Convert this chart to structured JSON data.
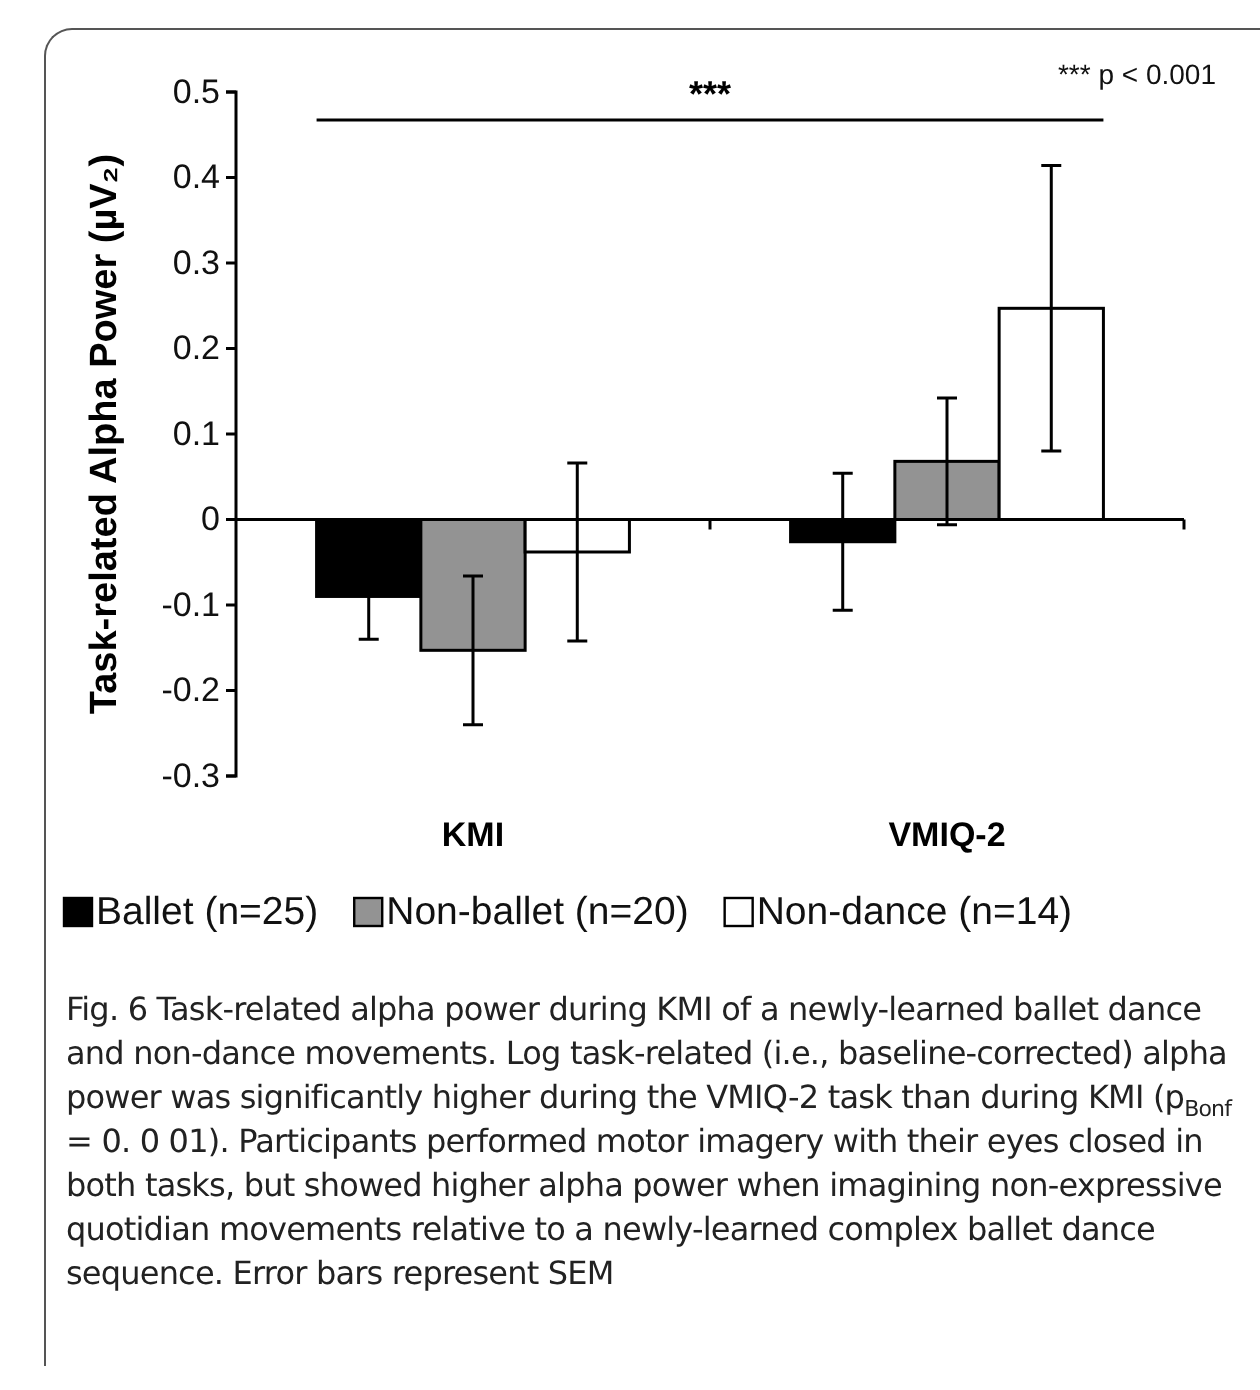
{
  "chart_data": {
    "type": "bar",
    "ylabel": "Task-related Alpha Power (µV₂)",
    "categories": [
      "KMI",
      "VMIQ-2"
    ],
    "series": [
      {
        "name": "Ballet (n=25)",
        "color": "#000000",
        "values": [
          -0.09,
          -0.026
        ],
        "errors": [
          0.05,
          0.08
        ]
      },
      {
        "name": "Non-ballet (n=20)",
        "color": "#939393",
        "values": [
          -0.153,
          0.068
        ],
        "errors": [
          0.087,
          0.074
        ]
      },
      {
        "name": "Non-dance (n=14)",
        "color": "#ffffff",
        "values": [
          -0.038,
          0.247
        ],
        "errors": [
          0.104,
          0.167
        ]
      }
    ],
    "ylim": [
      -0.3,
      0.5
    ],
    "yticks": [
      -0.3,
      -0.2,
      -0.1,
      0,
      0.1,
      0.2,
      0.3,
      0.4,
      0.5
    ],
    "legend": "bottom",
    "annotations": [
      "*** p < 0.001",
      "***",
      "Fig. 6 Task-related alpha power during KMI of a newly-learned ballet dance and non-dance movements. Log task-related (i.e., baseline-corrected) alpha power was significantly higher during the VMIQ-2 task than during KMI (p$_{Bonf}$ = 0. 0 01). Participants performed motor imagery with their eyes closed in both tasks, but showed higher alpha power when imagining non-expressive quotidian movements relative to a newly-learned complex ballet dance sequence. Error bars represent SEM"
    ]
  }
}
